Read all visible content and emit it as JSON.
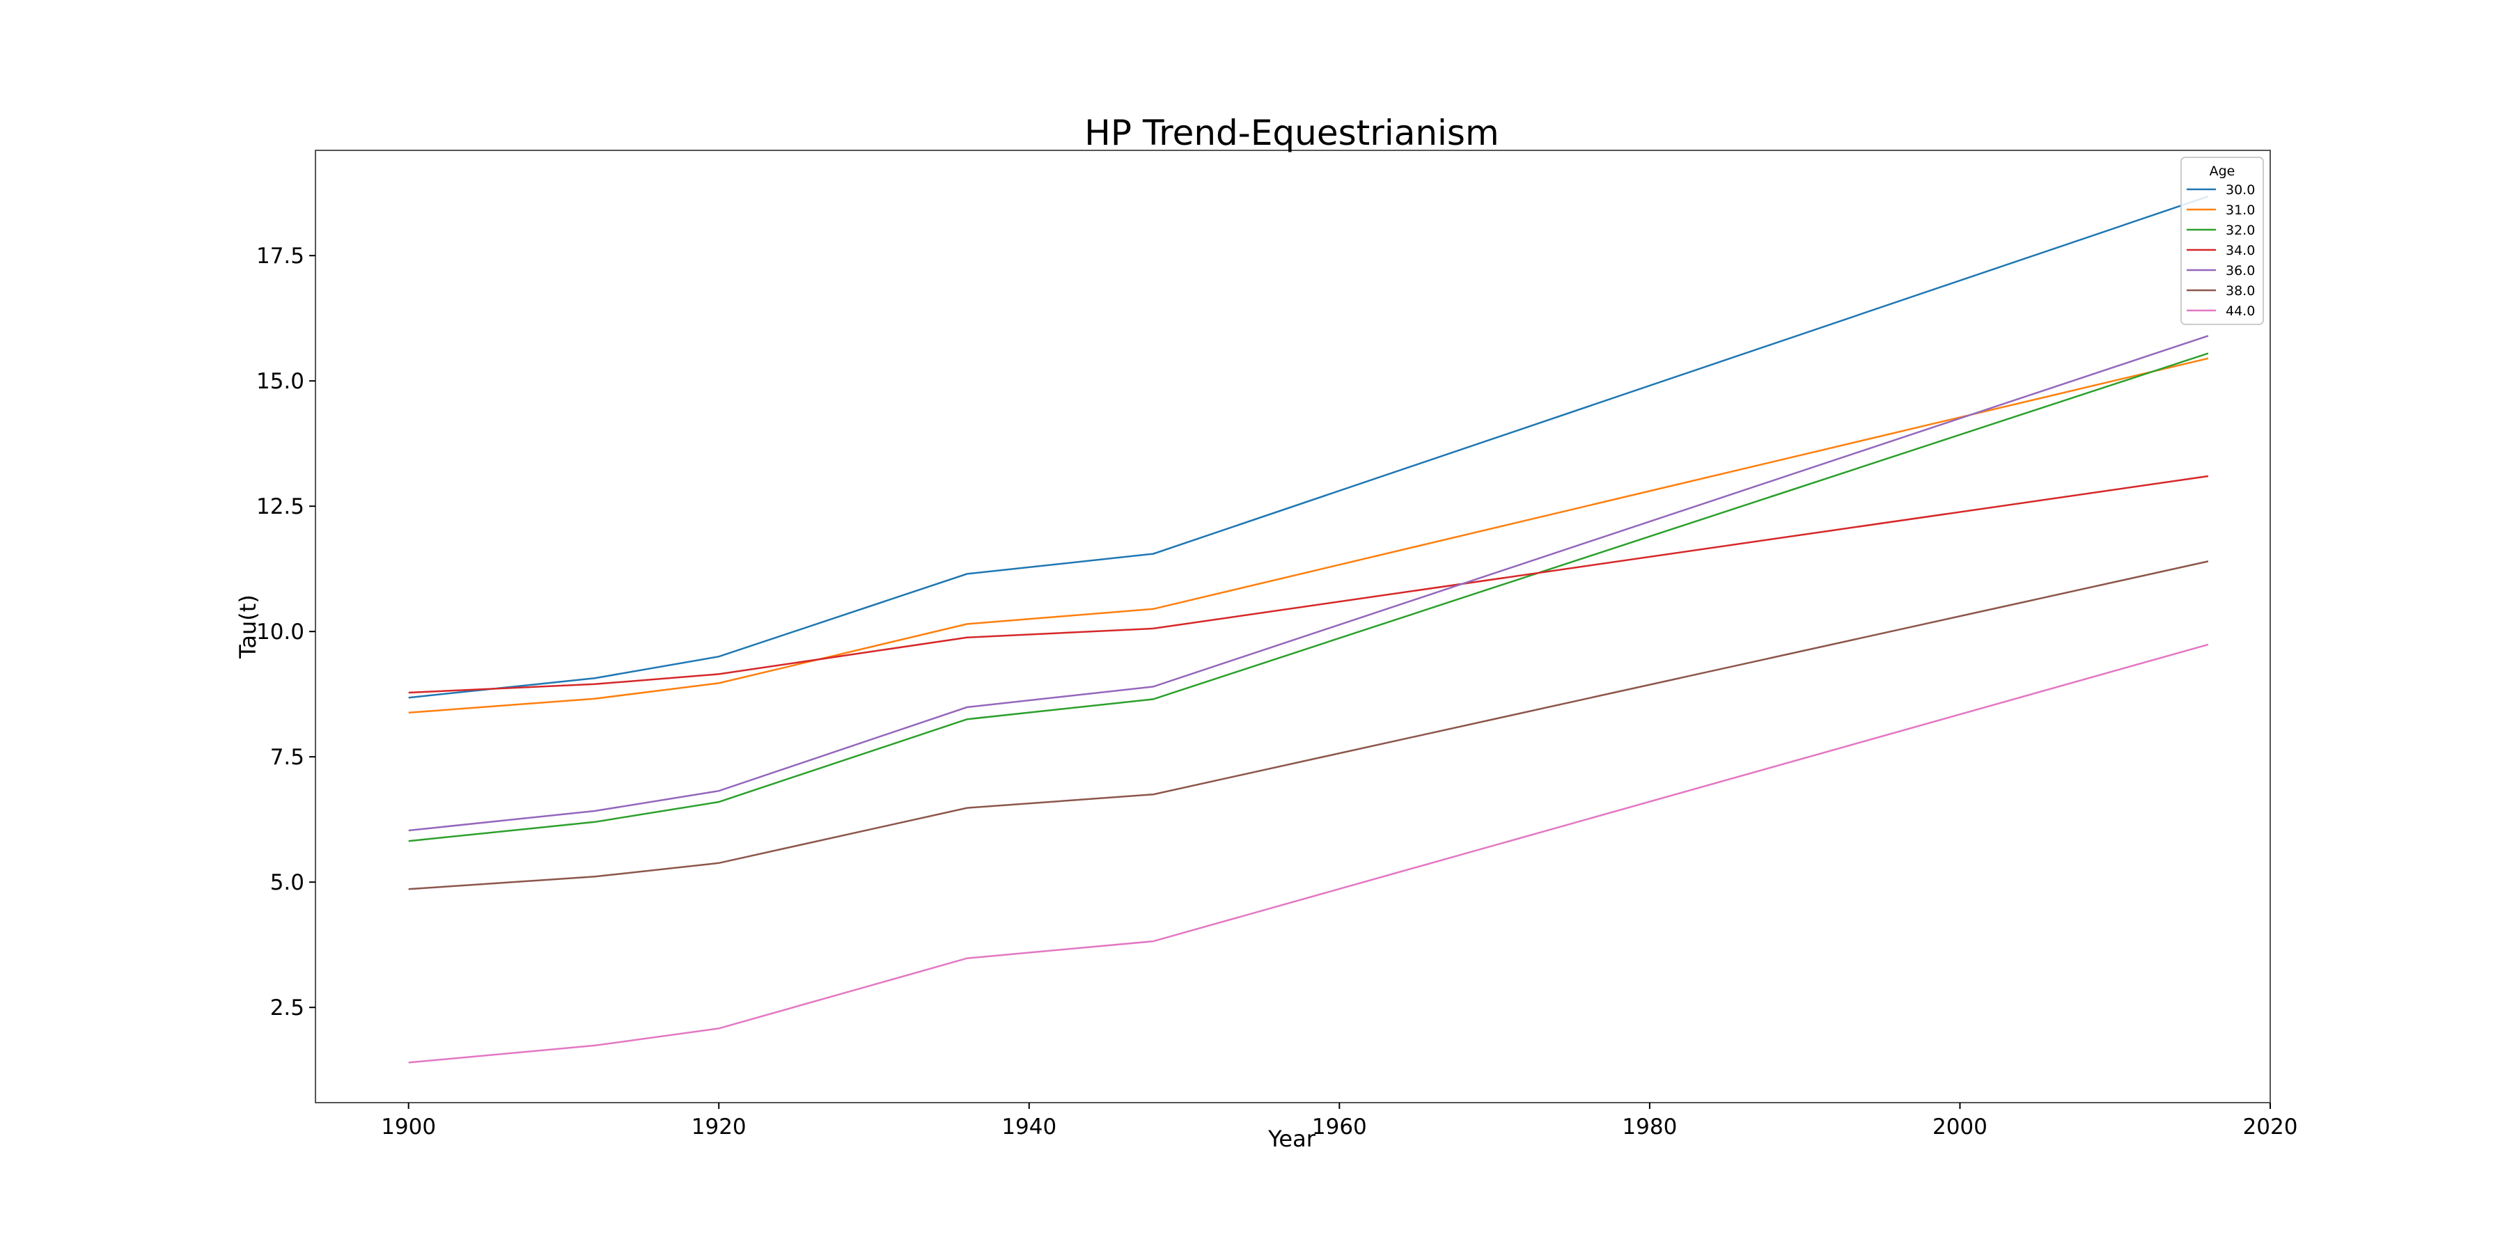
{
  "chart_data": {
    "type": "line",
    "title": "HP Trend-Equestrianism",
    "xlabel": "Year",
    "ylabel": "Tau(t)",
    "xlim": [
      1894,
      2020
    ],
    "ylim": [
      0.6,
      19.6
    ],
    "x_ticks": [
      1900,
      1920,
      1940,
      1960,
      1980,
      2000,
      2020
    ],
    "y_ticks": [
      2.5,
      5.0,
      7.5,
      10.0,
      12.5,
      15.0,
      17.5
    ],
    "x_tick_labels": [
      "1900",
      "1920",
      "1940",
      "1960",
      "1980",
      "2000",
      "2020"
    ],
    "y_tick_labels": [
      "2.5",
      "5.0",
      "7.5",
      "10.0",
      "12.5",
      "15.0",
      "17.5"
    ],
    "grid": false,
    "legend": {
      "title": "Age",
      "position": "top-right"
    },
    "x": [
      1900,
      1912,
      1920,
      1936,
      1948,
      2016
    ],
    "series": [
      {
        "name": "30.0",
        "color": "#1f77b4",
        "values": [
          8.68,
          9.07,
          9.5,
          11.15,
          11.55,
          18.68
        ]
      },
      {
        "name": "31.0",
        "color": "#ff7f0e",
        "values": [
          8.38,
          8.66,
          8.97,
          10.15,
          10.45,
          15.45
        ]
      },
      {
        "name": "32.0",
        "color": "#2ca02c",
        "values": [
          5.82,
          6.2,
          6.6,
          8.25,
          8.65,
          15.55
        ]
      },
      {
        "name": "34.0",
        "color": "#d62728",
        "values": [
          8.78,
          8.95,
          9.15,
          9.88,
          10.06,
          13.1
        ]
      },
      {
        "name": "36.0",
        "color": "#9467bd",
        "values": [
          6.03,
          6.42,
          6.82,
          8.49,
          8.9,
          15.9
        ]
      },
      {
        "name": "38.0",
        "color": "#8c564b",
        "values": [
          4.86,
          5.11,
          5.38,
          6.48,
          6.75,
          11.4
        ]
      },
      {
        "name": "44.0",
        "color": "#e377c2",
        "values": [
          1.4,
          1.74,
          2.08,
          3.48,
          3.82,
          9.74
        ]
      }
    ]
  }
}
